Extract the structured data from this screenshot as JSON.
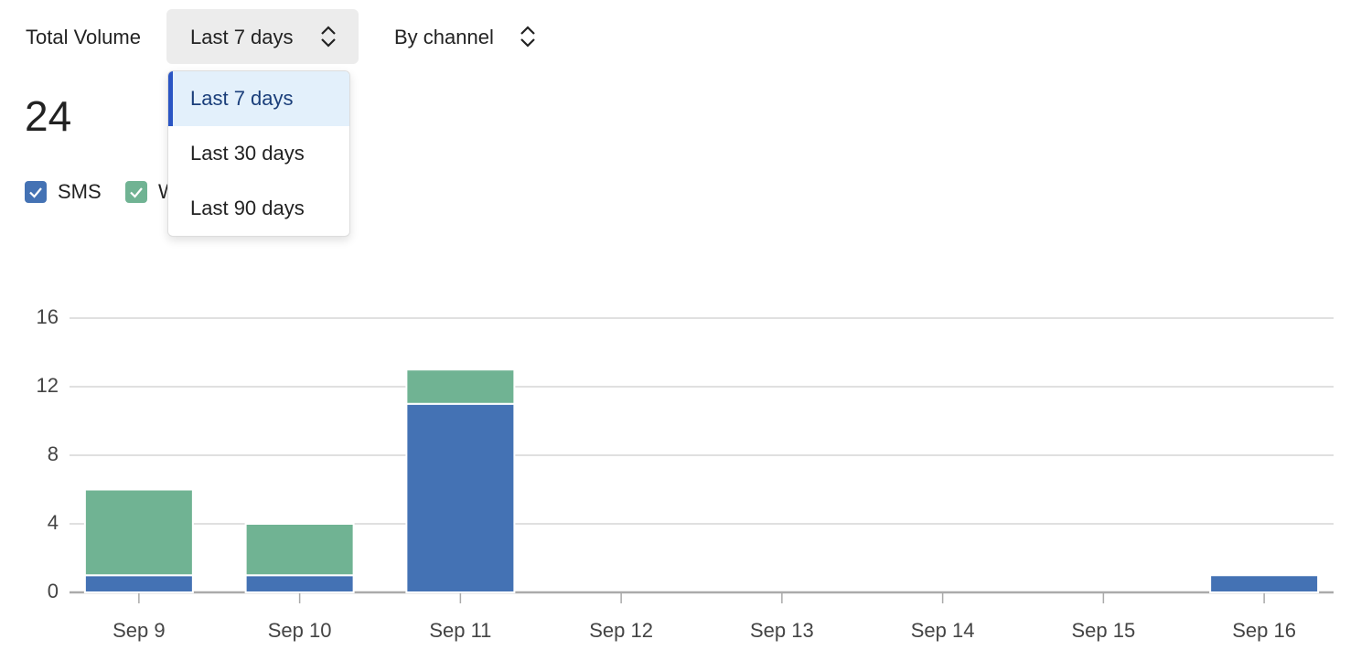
{
  "controls": {
    "label": "Total Volume",
    "range": "Last 7 days",
    "group": "By channel"
  },
  "total": 24,
  "dropdown": {
    "options": [
      "Last 7 days",
      "Last 30 days",
      "Last 90 days"
    ],
    "selected": 0
  },
  "chart_data": {
    "type": "bar",
    "stacked": true,
    "categories": [
      "Sep 9",
      "Sep 10",
      "Sep 11",
      "Sep 12",
      "Sep 13",
      "Sep 14",
      "Sep 15",
      "Sep 16"
    ],
    "series": [
      {
        "name": "SMS",
        "color": "#4472b4",
        "values": [
          1,
          1,
          11,
          0,
          0,
          0,
          0,
          1
        ]
      },
      {
        "name": "W",
        "color": "#70b393",
        "values": [
          5,
          3,
          2,
          0,
          0,
          0,
          0,
          0
        ]
      }
    ],
    "ylim": [
      0,
      16
    ],
    "yticks": [
      0,
      4,
      8,
      12,
      16
    ],
    "grid": true
  }
}
